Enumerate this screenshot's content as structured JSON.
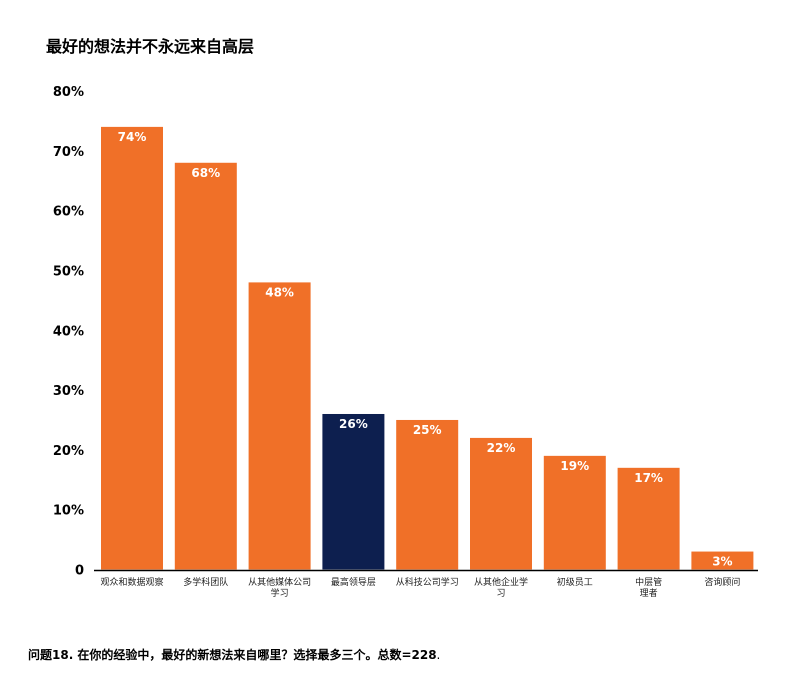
{
  "title": "最好的想法并不永远来自高层",
  "footnote": {
    "text": "问题18. 在你的经验中，最好的新想法来自哪里？选择最多三个。总数=228",
    "end": "."
  },
  "colors": {
    "bar": "#f07028",
    "highlight": "#0d1f4f",
    "axis": "#000000",
    "label": "#ffffff"
  },
  "chart_data": {
    "type": "bar",
    "title": "最好的想法并不永远来自高层",
    "categories": [
      [
        "观众和数据观察"
      ],
      [
        "多学科团队"
      ],
      [
        "从其他媒体公司",
        "学习"
      ],
      [
        "最高领导层"
      ],
      [
        "从科技公司学习"
      ],
      [
        "从其他企业学",
        "习"
      ],
      [
        "初级员工"
      ],
      [
        "中层管",
        "理者"
      ],
      [
        "咨询顾问"
      ]
    ],
    "values": [
      74,
      68,
      48,
      26,
      25,
      22,
      19,
      17,
      3
    ],
    "value_labels": [
      "74%",
      "68%",
      "48%",
      "26%",
      "25%",
      "22%",
      "19%",
      "17%",
      "3%"
    ],
    "highlight_index": 3,
    "yticks": [
      "0",
      "10%",
      "20%",
      "30%",
      "40%",
      "50%",
      "60%",
      "70%",
      "80%"
    ],
    "ylim": [
      0,
      80
    ],
    "grid": false,
    "legend": "none"
  }
}
